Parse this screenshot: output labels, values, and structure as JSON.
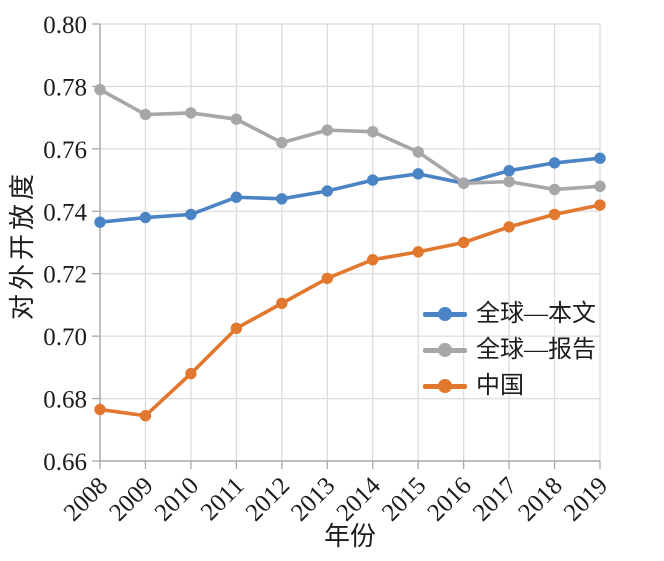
{
  "chart_data": {
    "type": "line",
    "title": "",
    "xlabel": "年份",
    "ylabel": "对外开放度",
    "x": [
      "2008",
      "2009",
      "2010",
      "2011",
      "2012",
      "2013",
      "2014",
      "2015",
      "2016",
      "2017",
      "2018",
      "2019"
    ],
    "series": [
      {
        "name": "全球—本文",
        "color": "#4b84c4",
        "values": [
          0.7365,
          0.738,
          0.739,
          0.7445,
          0.744,
          0.7465,
          0.75,
          0.752,
          0.749,
          0.753,
          0.7555,
          0.757
        ]
      },
      {
        "name": "全球—报告",
        "color": "#a7a7a7",
        "values": [
          0.779,
          0.771,
          0.7715,
          0.7695,
          0.762,
          0.766,
          0.7655,
          0.759,
          0.749,
          0.7495,
          0.747,
          0.748
        ]
      },
      {
        "name": "中国",
        "color": "#e2772e",
        "values": [
          0.6765,
          0.6745,
          0.688,
          0.7025,
          0.7105,
          0.7185,
          0.7245,
          0.727,
          0.73,
          0.735,
          0.739,
          0.742
        ]
      }
    ],
    "ylim": [
      0.66,
      0.8
    ],
    "ytick_step": 0.02,
    "ytick_labels": [
      "0.66",
      "0.68",
      "0.70",
      "0.72",
      "0.74",
      "0.76",
      "0.78",
      "0.80"
    ],
    "grid": true,
    "legend_position": "inside-lower-right",
    "style": {
      "grid_color": "#dcdcdc",
      "axis_color": "#a8a8a8",
      "tick_color": "#a8a8a8",
      "text_color": "#1c1c1c"
    }
  }
}
